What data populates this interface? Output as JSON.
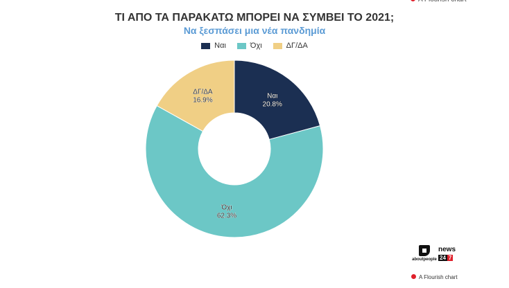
{
  "header": {
    "title": "ΤΙ ΑΠΟ ΤΑ ΠΑΡΑΚΑΤΩ ΜΠΟΡΕΙ ΝΑ ΣΥΜΒΕΙ ΤΟ 2021;",
    "subtitle": "Να ξεσπάσει μια νέα πανδημία"
  },
  "flourish_credit": "A Flourish chart",
  "logos": {
    "aboutpeople": "aboutpeople",
    "news": "news",
    "news_num1": "24",
    "news_num2": "7"
  },
  "chart_data": {
    "type": "pie",
    "title": "ΤΙ ΑΠΟ ΤΑ ΠΑΡΑΚΑΤΩ ΜΠΟΡΕΙ ΝΑ ΣΥΜΒΕΙ ΤΟ 2021;",
    "subtitle": "Να ξεσπάσει μια νέα πανδημία",
    "legend_position": "top",
    "donut": true,
    "categories": [
      "Ναι",
      "Όχι",
      "ΔΓ/ΔΑ"
    ],
    "values": [
      20.8,
      62.3,
      16.9
    ],
    "value_labels": [
      "20.8%",
      "62.3%",
      "16.9%"
    ],
    "colors": [
      "#1b2f52",
      "#6cc7c6",
      "#f0cf85"
    ]
  }
}
